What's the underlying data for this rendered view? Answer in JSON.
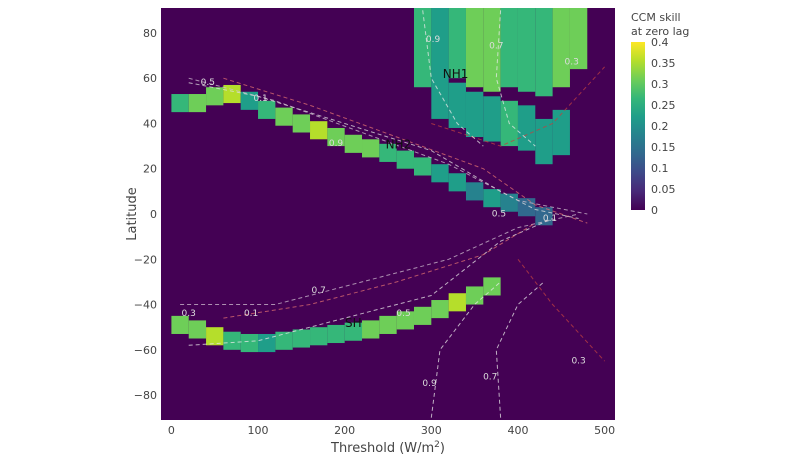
{
  "chart_data": {
    "type": "heatmap",
    "title": "",
    "xlabel": "Threshold (W/m",
    "xlabel_sup": "2",
    "xlabel_end": ")",
    "ylabel": "Latitude",
    "xlim": [
      -12,
      512
    ],
    "ylim": [
      -91,
      91
    ],
    "x_ticks": [
      0,
      100,
      200,
      300,
      400,
      500
    ],
    "y_ticks": [
      80,
      60,
      40,
      20,
      0,
      -20,
      -40,
      -60,
      -80
    ],
    "background_color": "#440154",
    "colorbar": {
      "title_line1": "CCM skill",
      "title_line2": "at zero lag",
      "range": [
        0,
        0.4
      ],
      "ticks": [
        0.4,
        0.35,
        0.3,
        0.25,
        0.2,
        0.15,
        0.1,
        0.05,
        0
      ],
      "colors": [
        "#440154",
        "#482878",
        "#3e4989",
        "#31688e",
        "#26828e",
        "#1f9e89",
        "#35b779",
        "#6ece58",
        "#b5de2b",
        "#fde725"
      ]
    },
    "regions": [
      {
        "label": "NH1",
        "x": 328,
        "y": 60
      },
      {
        "label": "NH2",
        "x": 262,
        "y": 29
      },
      {
        "label": "SH",
        "x": 210,
        "y": -50
      }
    ],
    "band_cells": [
      {
        "x": 10,
        "y": 49,
        "v": 0.27
      },
      {
        "x": 30,
        "y": 49,
        "v": 0.3
      },
      {
        "x": 50,
        "y": 52,
        "v": 0.33
      },
      {
        "x": 70,
        "y": 53,
        "v": 0.36
      },
      {
        "x": 90,
        "y": 50,
        "v": 0.24
      },
      {
        "x": 110,
        "y": 46,
        "v": 0.27
      },
      {
        "x": 130,
        "y": 43,
        "v": 0.3
      },
      {
        "x": 150,
        "y": 40,
        "v": 0.33
      },
      {
        "x": 170,
        "y": 37,
        "v": 0.35
      },
      {
        "x": 190,
        "y": 34,
        "v": 0.3
      },
      {
        "x": 210,
        "y": 31,
        "v": 0.33
      },
      {
        "x": 230,
        "y": 29,
        "v": 0.3
      },
      {
        "x": 250,
        "y": 27,
        "v": 0.26
      },
      {
        "x": 270,
        "y": 24,
        "v": 0.28
      },
      {
        "x": 290,
        "y": 21,
        "v": 0.25
      },
      {
        "x": 310,
        "y": 18,
        "v": 0.23
      },
      {
        "x": 330,
        "y": 14,
        "v": 0.2
      },
      {
        "x": 350,
        "y": 10,
        "v": 0.18
      },
      {
        "x": 370,
        "y": 7,
        "v": 0.2
      },
      {
        "x": 390,
        "y": 5,
        "v": 0.17
      },
      {
        "x": 410,
        "y": 3,
        "v": 0.15
      },
      {
        "x": 430,
        "y": -1,
        "v": 0.14
      },
      {
        "x": 10,
        "y": -49,
        "v": 0.3
      },
      {
        "x": 30,
        "y": -51,
        "v": 0.33
      },
      {
        "x": 50,
        "y": -54,
        "v": 0.35
      },
      {
        "x": 70,
        "y": -56,
        "v": 0.27
      },
      {
        "x": 90,
        "y": -57,
        "v": 0.25
      },
      {
        "x": 110,
        "y": -57,
        "v": 0.24
      },
      {
        "x": 130,
        "y": -56,
        "v": 0.25
      },
      {
        "x": 150,
        "y": -55,
        "v": 0.26
      },
      {
        "x": 170,
        "y": -54,
        "v": 0.27
      },
      {
        "x": 190,
        "y": -53,
        "v": 0.28
      },
      {
        "x": 210,
        "y": -52,
        "v": 0.26
      },
      {
        "x": 230,
        "y": -51,
        "v": 0.29
      },
      {
        "x": 250,
        "y": -49,
        "v": 0.31
      },
      {
        "x": 270,
        "y": -47,
        "v": 0.3
      },
      {
        "x": 290,
        "y": -45,
        "v": 0.33
      },
      {
        "x": 310,
        "y": -42,
        "v": 0.32
      },
      {
        "x": 330,
        "y": -39,
        "v": 0.35
      },
      {
        "x": 350,
        "y": -36,
        "v": 0.33
      },
      {
        "x": 370,
        "y": -32,
        "v": 0.3
      }
    ],
    "nh1_cells": [
      {
        "x": 290,
        "y": 66,
        "v": 0.26
      },
      {
        "x": 310,
        "y": 70,
        "v": 0.27
      },
      {
        "x": 330,
        "y": 70,
        "v": 0.28
      },
      {
        "x": 350,
        "y": 66,
        "v": 0.29
      },
      {
        "x": 370,
        "y": 64,
        "v": 0.3
      },
      {
        "x": 390,
        "y": 66,
        "v": 0.28
      },
      {
        "x": 410,
        "y": 64,
        "v": 0.26
      },
      {
        "x": 430,
        "y": 62,
        "v": 0.27
      },
      {
        "x": 450,
        "y": 66,
        "v": 0.29
      },
      {
        "x": 470,
        "y": 74,
        "v": 0.31
      },
      {
        "x": 310,
        "y": 52,
        "v": 0.22
      },
      {
        "x": 330,
        "y": 48,
        "v": 0.24
      },
      {
        "x": 350,
        "y": 44,
        "v": 0.2
      },
      {
        "x": 370,
        "y": 42,
        "v": 0.23
      },
      {
        "x": 390,
        "y": 40,
        "v": 0.25
      },
      {
        "x": 410,
        "y": 38,
        "v": 0.22
      },
      {
        "x": 430,
        "y": 32,
        "v": 0.21
      },
      {
        "x": 450,
        "y": 36,
        "v": 0.24
      }
    ],
    "contour_labels": [
      {
        "text": "0.5",
        "x": 42,
        "y": 57,
        "color": "#ddd"
      },
      {
        "text": "0.1",
        "x": 103,
        "y": 50,
        "color": "#ddd"
      },
      {
        "text": "0.9",
        "x": 190,
        "y": 30,
        "color": "#ddd"
      },
      {
        "text": "0.9",
        "x": 302,
        "y": 76,
        "color": "#ddd"
      },
      {
        "text": "0.7",
        "x": 375,
        "y": 73,
        "color": "#ddd"
      },
      {
        "text": "0.3",
        "x": 462,
        "y": 66,
        "color": "#ddd"
      },
      {
        "text": "0.5",
        "x": 378,
        "y": -1,
        "color": "#ddd"
      },
      {
        "text": "0.1",
        "x": 437,
        "y": -3,
        "color": "#ddd"
      },
      {
        "text": "0.7",
        "x": 170,
        "y": -35,
        "color": "#ddd"
      },
      {
        "text": "0.3",
        "x": 20,
        "y": -45,
        "color": "#ddd"
      },
      {
        "text": "0.1",
        "x": 92,
        "y": -45,
        "color": "#ddd"
      },
      {
        "text": "0.5",
        "x": 268,
        "y": -45,
        "color": "#ddd"
      },
      {
        "text": "0.9",
        "x": 298,
        "y": -76,
        "color": "#ddd"
      },
      {
        "text": "0.7",
        "x": 368,
        "y": -73,
        "color": "#ddd"
      },
      {
        "text": "0.3",
        "x": 470,
        "y": -66,
        "color": "#ddd"
      }
    ]
  }
}
